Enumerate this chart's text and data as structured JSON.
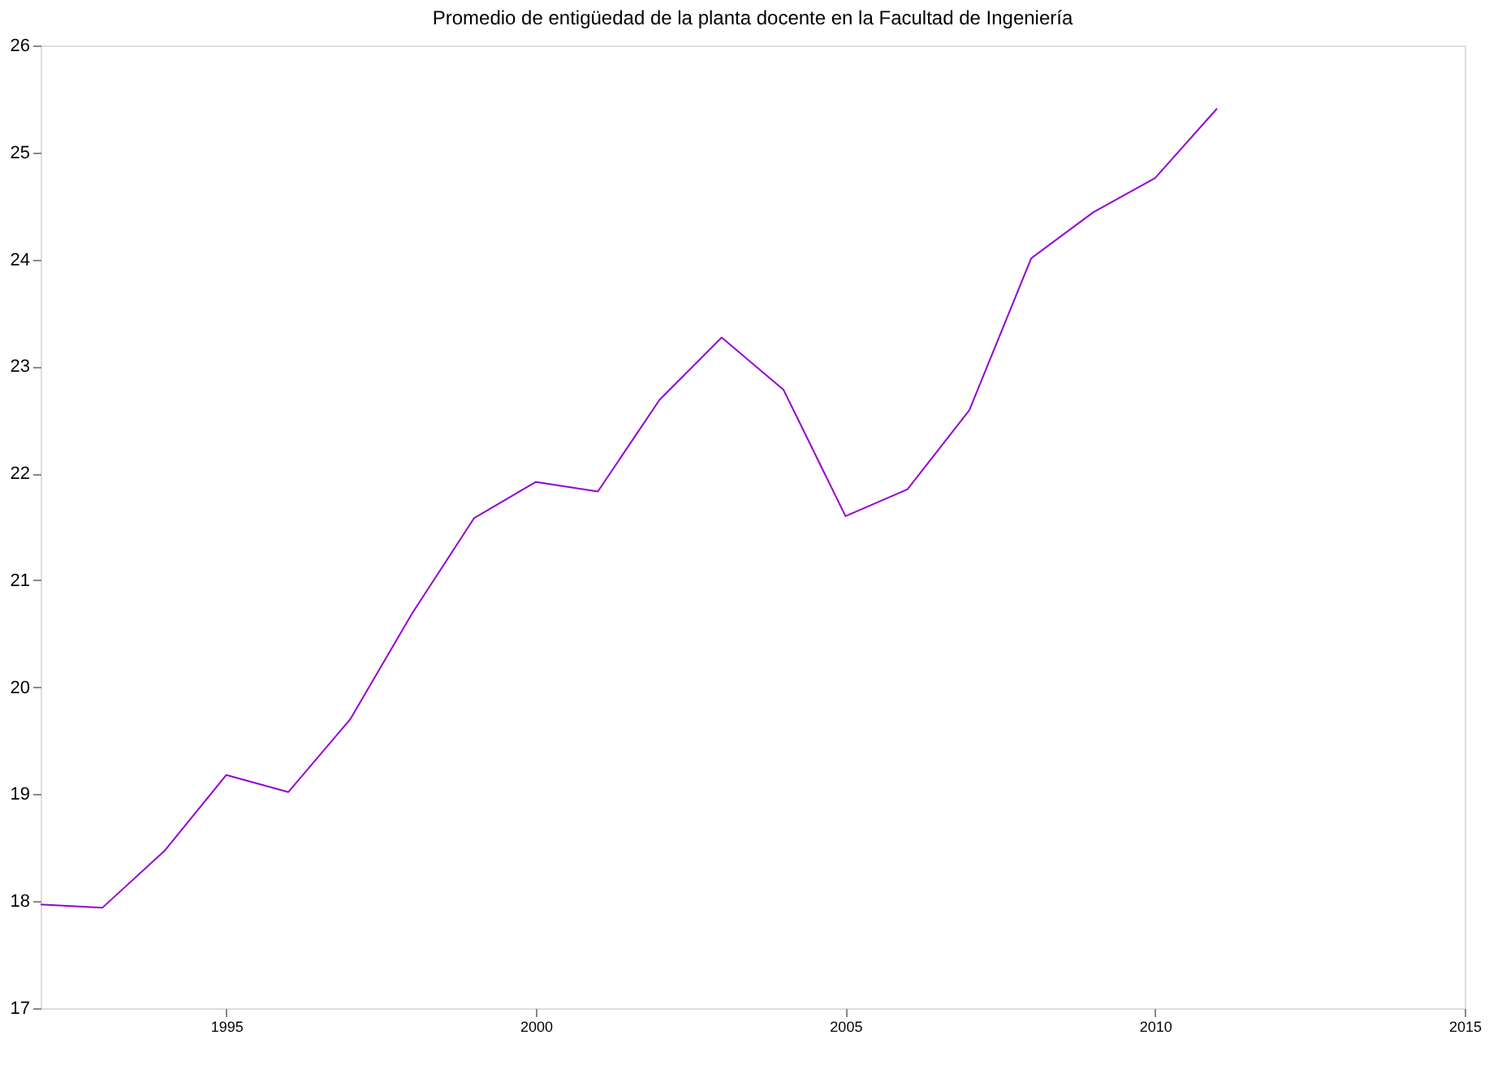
{
  "chart_data": {
    "type": "line",
    "title": "Promedio de entigüedad de la planta docente en la Facultad de Ingeniería",
    "x": [
      1992,
      1993,
      1994,
      1995,
      1996,
      1997,
      1998,
      1999,
      2000,
      2001,
      2002,
      2003,
      2004,
      2005,
      2006,
      2007,
      2008,
      2009,
      2010,
      2011
    ],
    "series": [
      {
        "color": "#9400d3",
        "values": [
          17.97,
          17.94,
          18.47,
          19.18,
          19.02,
          19.7,
          20.69,
          21.58,
          21.92,
          21.83,
          22.69,
          23.27,
          22.78,
          21.6,
          21.85,
          22.59,
          24.01,
          24.44,
          24.76,
          25.41
        ]
      }
    ],
    "xlim": [
      1992,
      2015
    ],
    "xticks": [
      1995,
      2000,
      2005,
      2010,
      2015
    ],
    "ylim": [
      17,
      26
    ],
    "yticks": [
      17,
      18,
      19,
      20,
      21,
      22,
      23,
      24,
      25,
      26
    ],
    "grid": false
  }
}
